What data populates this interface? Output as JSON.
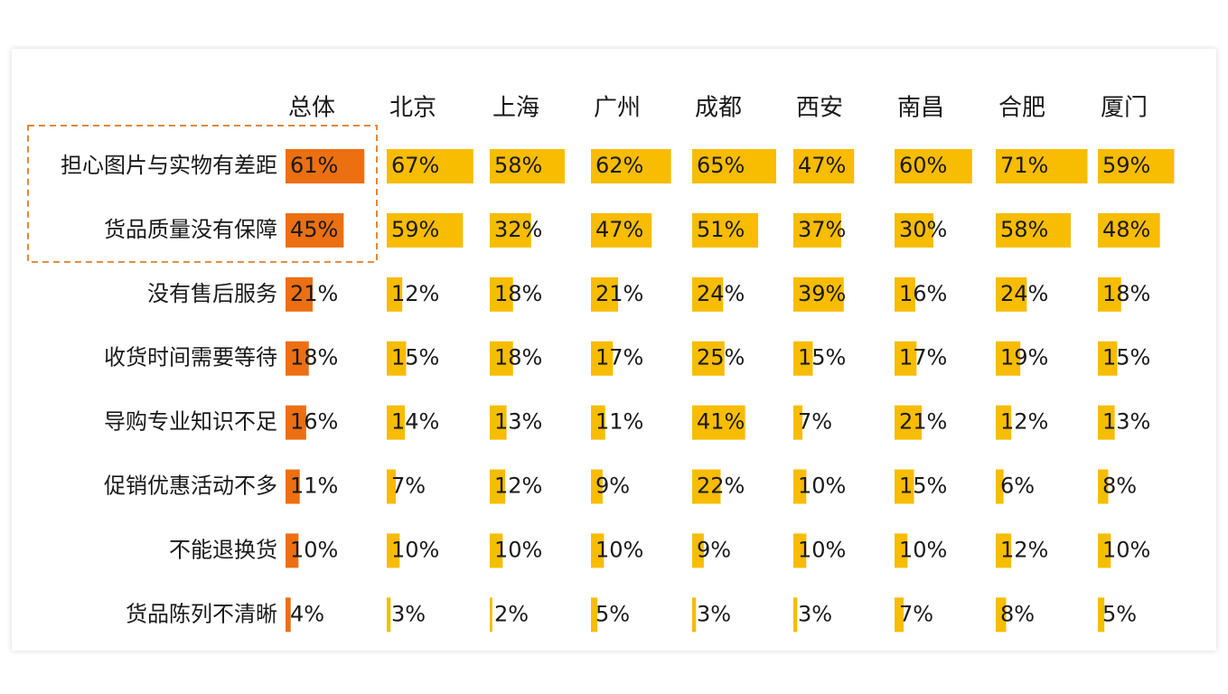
{
  "chart_data": {
    "type": "table",
    "columns": [
      "总体",
      "北京",
      "上海",
      "广州",
      "成都",
      "西安",
      "南昌",
      "合肥",
      "厦门"
    ],
    "rows": [
      {
        "label": "担心图片与实物有差距",
        "values": [
          61,
          67,
          58,
          62,
          65,
          47,
          60,
          71,
          59
        ]
      },
      {
        "label": "货品质量没有保障",
        "values": [
          45,
          59,
          32,
          47,
          51,
          37,
          30,
          58,
          48
        ]
      },
      {
        "label": "没有售后服务",
        "values": [
          21,
          12,
          18,
          21,
          24,
          39,
          16,
          24,
          18
        ]
      },
      {
        "label": "收货时间需要等待",
        "values": [
          18,
          15,
          18,
          17,
          25,
          15,
          17,
          19,
          15
        ]
      },
      {
        "label": "导购专业知识不足",
        "values": [
          16,
          14,
          13,
          11,
          41,
          7,
          21,
          12,
          13
        ]
      },
      {
        "label": "促销优惠活动不多",
        "values": [
          11,
          7,
          12,
          9,
          22,
          10,
          15,
          6,
          8
        ]
      },
      {
        "label": "不能退换货",
        "values": [
          10,
          10,
          10,
          10,
          9,
          10,
          10,
          12,
          10
        ]
      },
      {
        "label": "货品陈列不清晰",
        "values": [
          4,
          3,
          2,
          5,
          3,
          3,
          7,
          8,
          5
        ]
      }
    ],
    "value_suffix": "%",
    "highlighted_rows": [
      0,
      1
    ],
    "colors": {
      "overall_bar": "#ec6f12",
      "city_bar": "#f8bc00",
      "highlight_border": "#e0893c",
      "text": "#1a1a1a"
    }
  }
}
